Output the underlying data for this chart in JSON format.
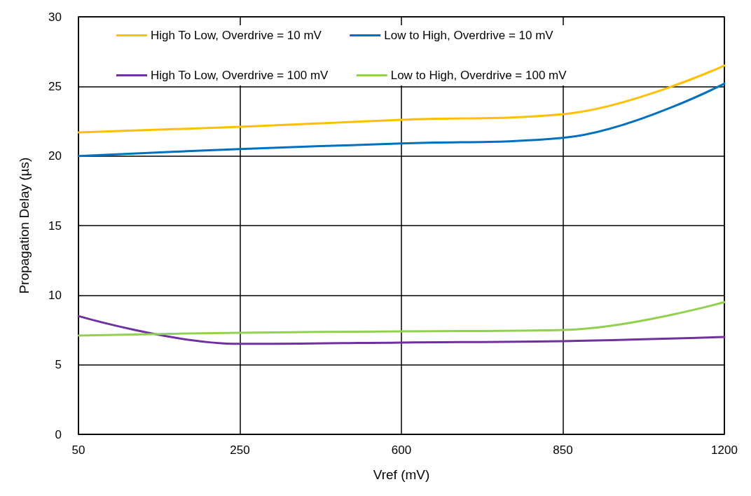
{
  "chart_data": {
    "type": "line",
    "xlabel": "Vref (mV)",
    "ylabel": "Propagation Delay (µs)",
    "categories": [
      "50",
      "250",
      "600",
      "850",
      "1200"
    ],
    "ylim": [
      0,
      30
    ],
    "yticks": [
      0,
      5,
      10,
      15,
      20,
      25,
      30
    ],
    "grid": true,
    "legend": "top",
    "marker": "none",
    "line_style": "solid",
    "series": [
      {
        "name": "High To Low, Overdrive = 10 mV",
        "color": "#ffc000",
        "values": [
          21.7,
          22.1,
          22.6,
          23.0,
          26.5
        ]
      },
      {
        "name": "Low to High, Overdrive = 10 mV",
        "color": "#0070c0",
        "values": [
          20.0,
          20.5,
          20.9,
          21.3,
          25.2
        ]
      },
      {
        "name": "High To Low, Overdrive = 100 mV",
        "color": "#7030a0",
        "values": [
          8.5,
          6.5,
          6.6,
          6.7,
          7.0
        ]
      },
      {
        "name": "Low to High, Overdrive = 100 mV",
        "color": "#92d050",
        "values": [
          7.1,
          7.3,
          7.4,
          7.5,
          9.5
        ]
      }
    ]
  }
}
